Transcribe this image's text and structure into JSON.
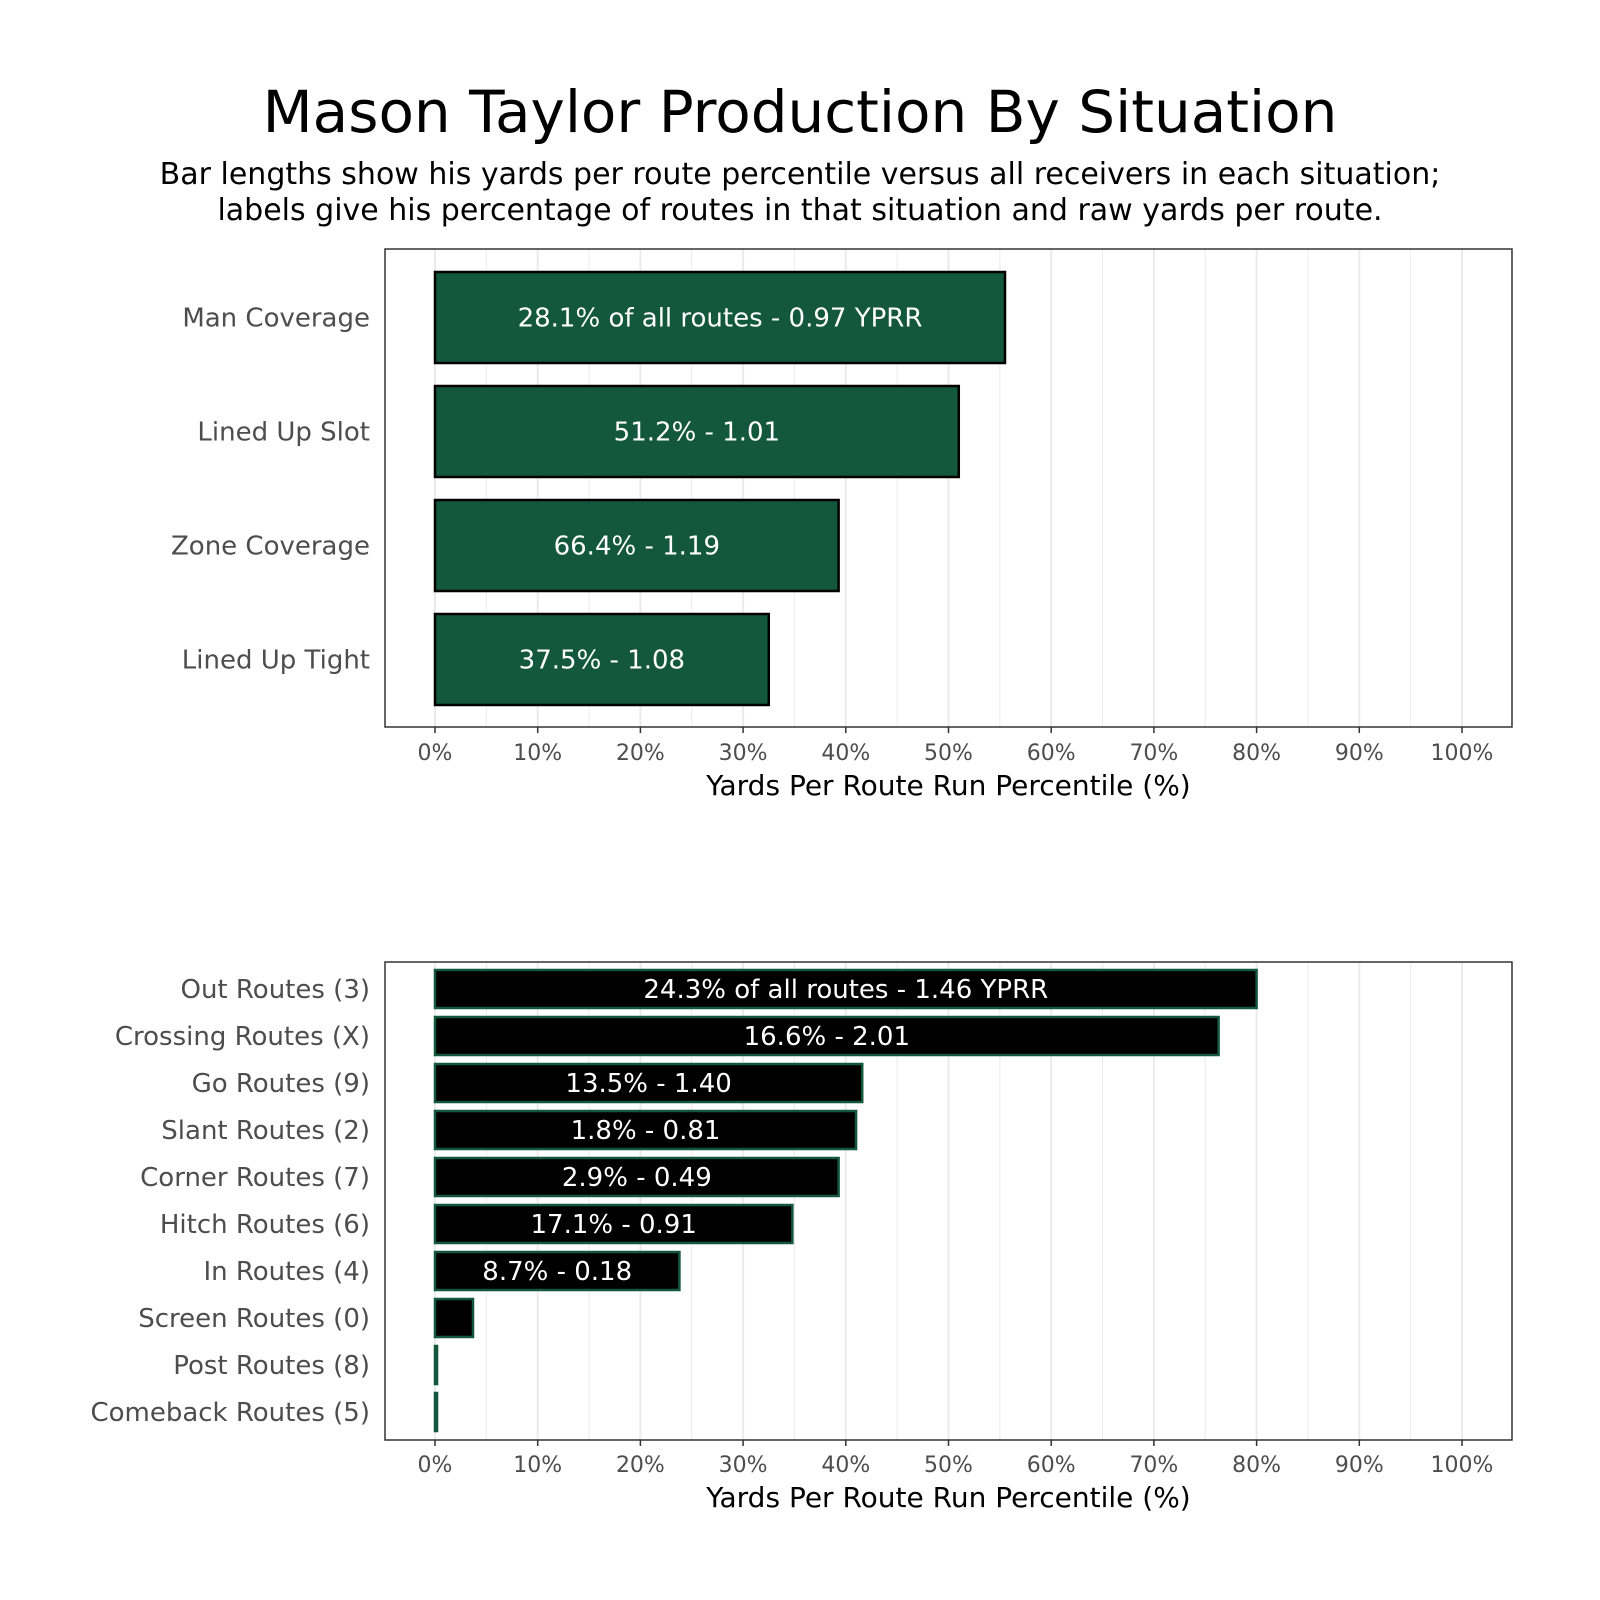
{
  "title": "Mason Taylor Production By Situation",
  "subtitle_line1": "Bar lengths show his yards per route percentile versus all receivers in each situation;",
  "subtitle_line2": "labels give his percentage of routes in that situation and raw yards per route.",
  "colors": {
    "top_bar_fill": "#14573f",
    "top_bar_stroke": "#000000",
    "bottom_bar_fill": "#000000",
    "bottom_bar_stroke": "#14573f",
    "grid": "#ebebeb",
    "panel_border": "#333333"
  },
  "chart_data": [
    {
      "type": "bar",
      "orientation": "horizontal",
      "xlabel": "Yards Per Route Run Percentile (%)",
      "xlim": [
        0,
        100
      ],
      "x_ticks": [
        "0%",
        "10%",
        "20%",
        "30%",
        "40%",
        "50%",
        "60%",
        "70%",
        "80%",
        "90%",
        "100%"
      ],
      "grid": true,
      "categories": [
        "Man Coverage",
        "Lined Up Slot",
        "Zone Coverage",
        "Lined Up Tight"
      ],
      "values": [
        55.5,
        51,
        39.3,
        32.5
      ],
      "labels": [
        "28.1% of all routes - 0.97 YPRR",
        "51.2% - 1.01",
        "66.4% - 1.19",
        "37.5% - 1.08"
      ]
    },
    {
      "type": "bar",
      "orientation": "horizontal",
      "xlabel": "Yards Per Route Run Percentile (%)",
      "xlim": [
        0,
        100
      ],
      "x_ticks": [
        "0%",
        "10%",
        "20%",
        "30%",
        "40%",
        "50%",
        "60%",
        "70%",
        "80%",
        "90%",
        "100%"
      ],
      "grid": true,
      "categories": [
        "Out Routes (3)",
        "Crossing Routes (X)",
        "Go Routes (9)",
        "Slant Routes (2)",
        "Corner Routes (7)",
        "Hitch Routes (6)",
        "In Routes (4)",
        "Screen Routes (0)",
        "Post Routes (8)",
        "Comeback Routes (5)"
      ],
      "values": [
        80,
        76.3,
        41.6,
        41,
        39.3,
        34.8,
        23.8,
        3.7,
        0.2,
        0.2
      ],
      "labels": [
        "24.3% of all routes - 1.46 YPRR",
        "16.6% - 2.01",
        "13.5% - 1.40",
        "1.8% - 0.81",
        "2.9% - 0.49",
        "17.1% - 0.91",
        "8.7% - 0.18",
        "",
        "",
        ""
      ]
    }
  ]
}
